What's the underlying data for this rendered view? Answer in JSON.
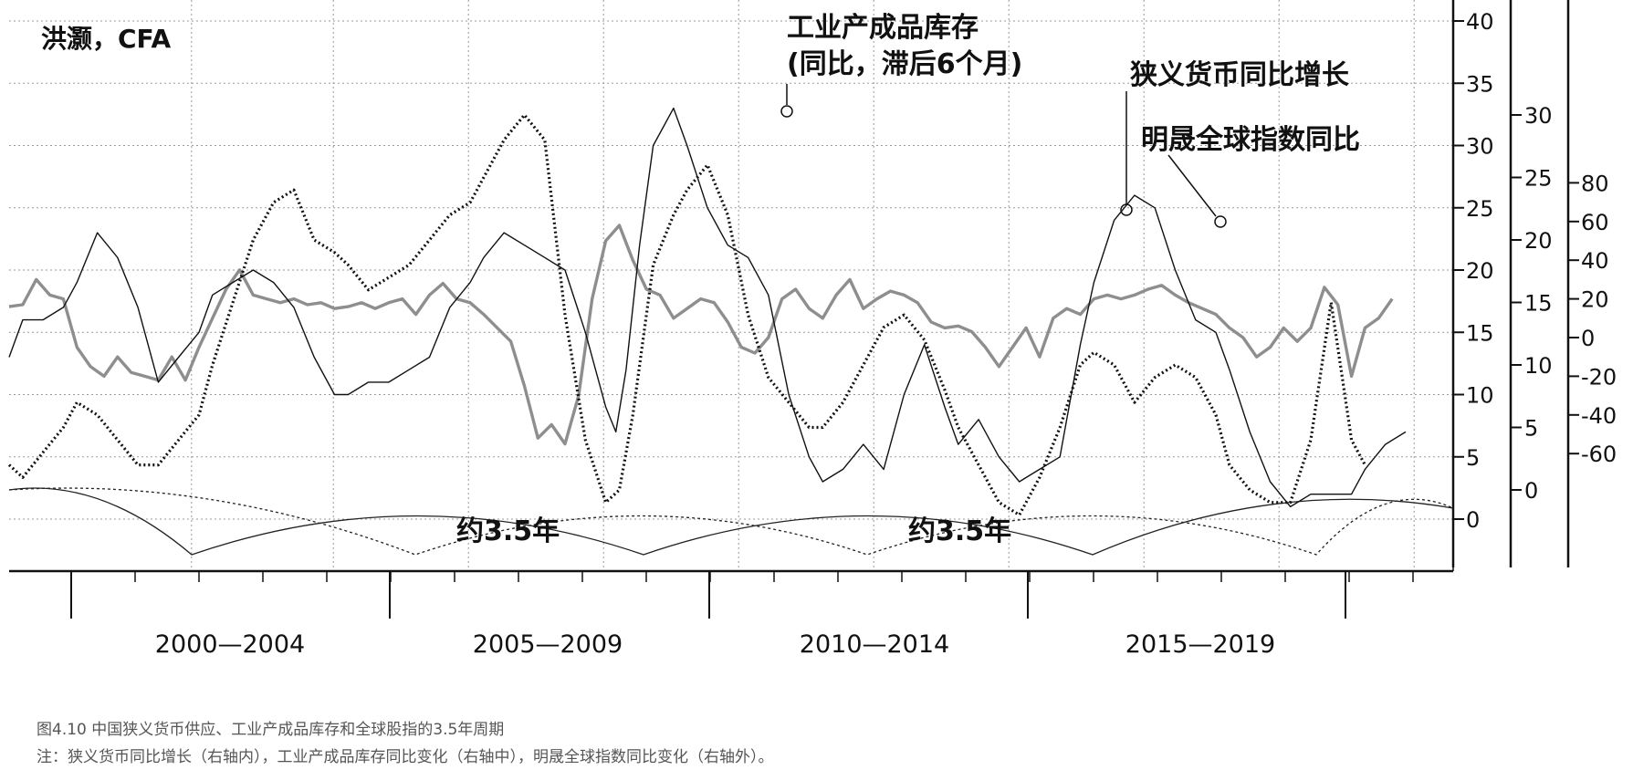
{
  "chart_data": {
    "type": "line",
    "source_label": "洪灏，CFA",
    "periods": [
      "2000—2004",
      "2005—2009",
      "2010—2014",
      "2015—2019"
    ],
    "cycle_annotation": "约3.5年",
    "annotations": {
      "inventory": [
        "工业产成品库存",
        "(同比，滞后6个月)"
      ],
      "m1": "狭义货币同比增长",
      "msci": "明晟全球指数同比"
    },
    "axes": {
      "right_inner": {
        "series": "狭义货币同比增长",
        "ticks": [
          0,
          5,
          10,
          15,
          20,
          25,
          30,
          35,
          40
        ]
      },
      "right_middle": {
        "series": "工业产成品库存同比",
        "ticks": [
          0,
          5,
          10,
          15,
          20,
          25,
          30
        ]
      },
      "right_outer": {
        "series": "明晟全球指数同比",
        "ticks": [
          -60,
          -40,
          -20,
          0,
          20,
          40,
          60,
          80
        ]
      }
    },
    "series": [
      {
        "name": "狭义货币同比增长",
        "style": "thin-solid",
        "x": [
          2000.0,
          2000.2,
          2000.5,
          2000.8,
          2001.0,
          2001.3,
          2001.6,
          2001.9,
          2002.2,
          2002.5,
          2002.8,
          2003.0,
          2003.3,
          2003.6,
          2003.9,
          2004.2,
          2004.5,
          2004.8,
          2005.0,
          2005.3,
          2005.6,
          2005.9,
          2006.2,
          2006.5,
          2006.8,
          2007.0,
          2007.3,
          2007.6,
          2007.9,
          2008.2,
          2008.5,
          2008.8,
          2008.95,
          2009.1,
          2009.3,
          2009.5,
          2009.8,
          2010.0,
          2010.3,
          2010.6,
          2010.9,
          2011.2,
          2011.5,
          2011.8,
          2012.0,
          2012.3,
          2012.6,
          2012.9,
          2013.2,
          2013.5,
          2013.8,
          2014.0,
          2014.3,
          2014.6,
          2014.9,
          2015.2,
          2015.5,
          2015.8,
          2016.0,
          2016.3,
          2016.6,
          2016.9,
          2017.2,
          2017.5,
          2017.8,
          2018.0,
          2018.3,
          2018.6,
          2018.9,
          2019.2,
          2019.5,
          2019.8,
          2020.0,
          2020.3,
          2020.6
        ],
        "y": [
          13,
          16,
          16,
          17,
          19,
          23,
          21,
          17,
          11,
          13,
          15,
          18,
          19,
          20,
          19,
          17,
          13,
          10,
          10,
          11,
          11,
          12,
          13,
          17,
          19,
          21,
          23,
          22,
          21,
          20,
          15,
          9,
          7,
          12,
          22,
          30,
          33,
          30,
          25,
          22,
          21,
          18,
          10,
          5,
          3,
          4,
          6,
          4,
          10,
          14,
          9,
          6,
          8,
          5,
          3,
          4,
          5,
          14,
          19,
          24,
          26,
          25,
          20,
          16,
          15,
          12,
          7,
          3,
          1,
          2,
          2,
          2,
          4,
          6,
          7
        ]
      },
      {
        "name": "工业产成品库存同比",
        "style": "dotted",
        "x": [
          2000.0,
          2000.2,
          2000.5,
          2000.8,
          2001.0,
          2001.3,
          2001.6,
          2001.9,
          2002.2,
          2002.5,
          2002.8,
          2003.0,
          2003.3,
          2003.6,
          2003.9,
          2004.2,
          2004.5,
          2004.8,
          2005.0,
          2005.3,
          2005.6,
          2005.9,
          2006.2,
          2006.5,
          2006.8,
          2007.0,
          2007.3,
          2007.6,
          2007.9,
          2008.2,
          2008.5,
          2008.8,
          2009.0,
          2009.2,
          2009.5,
          2009.8,
          2010.0,
          2010.3,
          2010.6,
          2010.9,
          2011.2,
          2011.5,
          2011.8,
          2012.0,
          2012.3,
          2012.6,
          2012.9,
          2013.2,
          2013.5,
          2013.8,
          2014.0,
          2014.3,
          2014.6,
          2014.9,
          2015.2,
          2015.5,
          2015.8,
          2016.0,
          2016.3,
          2016.6,
          2016.9,
          2017.2,
          2017.5,
          2017.8,
          2018.0,
          2018.3,
          2018.6,
          2018.9,
          2019.2,
          2019.5,
          2019.8,
          2020.0
        ],
        "y": [
          2,
          1,
          3,
          5,
          7,
          6,
          4,
          2,
          2,
          4,
          6,
          10,
          15,
          20,
          23,
          24,
          20,
          19,
          18,
          16,
          17,
          18,
          20,
          22,
          23,
          25,
          28,
          30,
          28,
          14,
          4,
          -1,
          0,
          6,
          18,
          22,
          24,
          26,
          22,
          14,
          9,
          7,
          5,
          5,
          7,
          10,
          13,
          14,
          12,
          8,
          5,
          2,
          -1,
          -2,
          1,
          5,
          10,
          11,
          10,
          7,
          9,
          10,
          9,
          6,
          2,
          0,
          -1,
          -1,
          4,
          15,
          4,
          2
        ]
      },
      {
        "name": "明晟全球指数同比",
        "style": "thick-gray",
        "x": [
          2000.0,
          2000.2,
          2000.4,
          2000.6,
          2000.8,
          2001.0,
          2001.2,
          2001.4,
          2001.6,
          2001.8,
          2002.0,
          2002.2,
          2002.4,
          2002.6,
          2002.8,
          2003.0,
          2003.2,
          2003.4,
          2003.6,
          2003.8,
          2004.0,
          2004.2,
          2004.4,
          2004.6,
          2004.8,
          2005.0,
          2005.2,
          2005.4,
          2005.6,
          2005.8,
          2006.0,
          2006.2,
          2006.4,
          2006.6,
          2006.8,
          2007.0,
          2007.2,
          2007.4,
          2007.6,
          2007.8,
          2008.0,
          2008.2,
          2008.4,
          2008.6,
          2008.8,
          2009.0,
          2009.2,
          2009.4,
          2009.6,
          2009.8,
          2010.0,
          2010.2,
          2010.4,
          2010.6,
          2010.8,
          2011.0,
          2011.2,
          2011.4,
          2011.6,
          2011.8,
          2012.0,
          2012.2,
          2012.4,
          2012.6,
          2012.8,
          2013.0,
          2013.2,
          2013.4,
          2013.6,
          2013.8,
          2014.0,
          2014.2,
          2014.4,
          2014.6,
          2014.8,
          2015.0,
          2015.2,
          2015.4,
          2015.6,
          2015.8,
          2016.0,
          2016.2,
          2016.4,
          2016.6,
          2016.8,
          2017.0,
          2017.2,
          2017.4,
          2017.6,
          2017.8,
          2018.0,
          2018.2,
          2018.4,
          2018.6,
          2018.8,
          2019.0,
          2019.2,
          2019.4,
          2019.6,
          2019.8,
          2020.0,
          2020.2,
          2020.4
        ],
        "y": [
          16,
          17,
          30,
          22,
          20,
          -5,
          -15,
          -20,
          -10,
          -18,
          -20,
          -22,
          -10,
          -22,
          -5,
          10,
          25,
          35,
          22,
          20,
          18,
          20,
          17,
          18,
          15,
          16,
          18,
          15,
          18,
          20,
          12,
          22,
          28,
          20,
          18,
          12,
          5,
          -2,
          -25,
          -52,
          -45,
          -55,
          -30,
          20,
          50,
          58,
          40,
          25,
          22,
          10,
          15,
          20,
          18,
          8,
          -5,
          -8,
          0,
          20,
          25,
          15,
          10,
          22,
          30,
          15,
          20,
          24,
          22,
          18,
          8,
          5,
          6,
          3,
          -5,
          -15,
          -5,
          5,
          -10,
          10,
          15,
          12,
          20,
          22,
          20,
          22,
          25,
          27,
          22,
          18,
          15,
          12,
          5,
          0,
          -10,
          -5,
          5,
          -2,
          5,
          26,
          17,
          -20,
          5,
          10,
          20
        ]
      }
    ]
  },
  "caption": {
    "title": "图4.10 中国狭义货币供应、工业产成品库存和全球股指的3.5年周期",
    "note": "注：狭义货币同比增长（右轴内），工业产成品库存同比变化（右轴中），明晟全球指数同比变化（右轴外）。"
  }
}
